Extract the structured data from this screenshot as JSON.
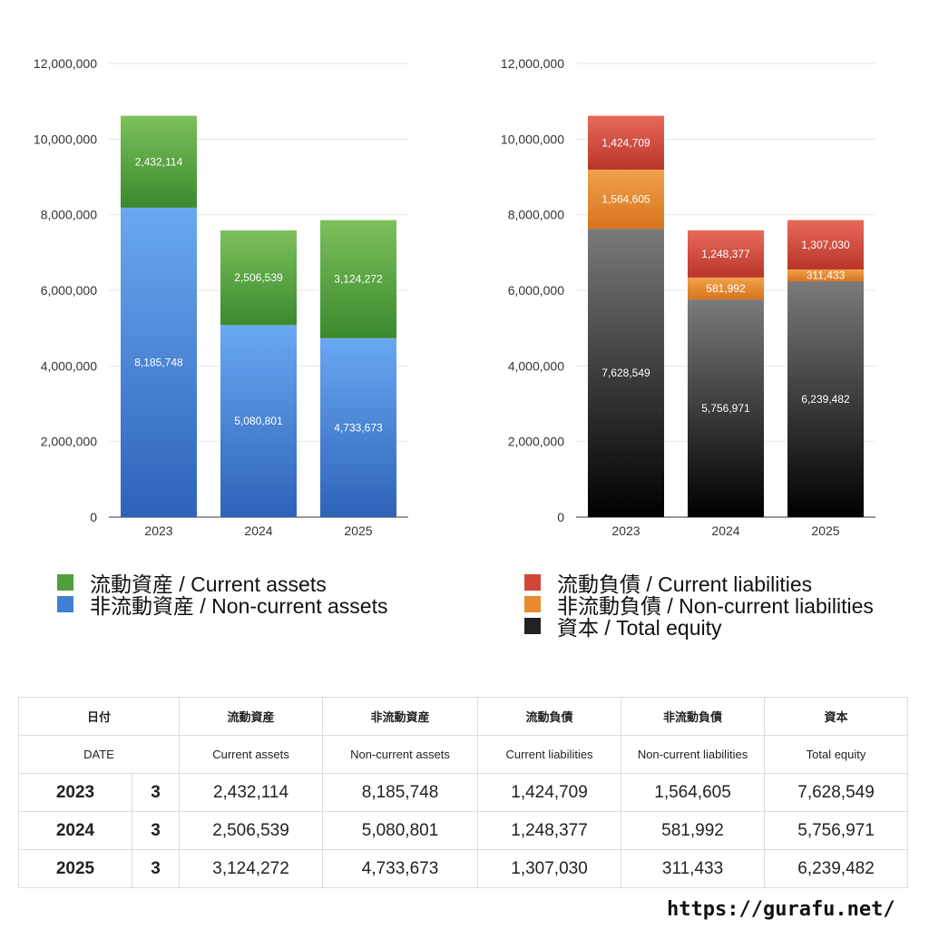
{
  "chart_data": [
    {
      "type": "bar",
      "stacked": true,
      "categories": [
        "2023",
        "2024",
        "2025"
      ],
      "ylim": [
        0,
        12000000
      ],
      "yticks": [
        "0",
        "2,000,000",
        "4,000,000",
        "6,000,000",
        "8,000,000",
        "10,000,000",
        "12,000,000"
      ],
      "grid": true,
      "series": [
        {
          "name": "非流動資産 / Non-current assets",
          "values": [
            8185748,
            5080801,
            4733673
          ],
          "color_top": "#6aa8f2",
          "color_bottom": "#2e63b8"
        },
        {
          "name": "流動資産 / Current assets",
          "values": [
            2432114,
            2506539,
            3124272
          ],
          "color_top": "#7dc05c",
          "color_bottom": "#3a8a2e"
        }
      ]
    },
    {
      "type": "bar",
      "stacked": true,
      "categories": [
        "2023",
        "2024",
        "2025"
      ],
      "ylim": [
        0,
        12000000
      ],
      "yticks": [
        "0",
        "2,000,000",
        "4,000,000",
        "6,000,000",
        "8,000,000",
        "10,000,000",
        "12,000,000"
      ],
      "grid": true,
      "series": [
        {
          "name": "資本 / Total equity",
          "values": [
            7628549,
            5756971,
            6239482
          ],
          "color_top": "#7a7a7a",
          "color_bottom": "#000000"
        },
        {
          "name": "非流動負債 / Non-current liabilities",
          "values": [
            1564605,
            581992,
            311433
          ],
          "color_top": "#f0a24a",
          "color_bottom": "#d7741f"
        },
        {
          "name": "流動負債 / Current liabilities",
          "values": [
            1424709,
            1248377,
            1307030
          ],
          "color_top": "#e86a5a",
          "color_bottom": "#b9352a"
        }
      ]
    }
  ],
  "legend_left": [
    {
      "label": "流動資産 / Current assets",
      "color": "#4fa03a"
    },
    {
      "label": "非流動資産 / Non-current assets",
      "color": "#3f80d6"
    }
  ],
  "legend_right": [
    {
      "label": "流動負債 / Current liabilities",
      "color": "#d2463a"
    },
    {
      "label": "非流動負債 / Non-current liabilities",
      "color": "#e88a30"
    },
    {
      "label": "資本 / Total equity",
      "color": "#222222"
    }
  ],
  "table": {
    "header_jp": [
      "日付",
      "",
      "流動資産",
      "非流動資産",
      "流動負債",
      "非流動負債",
      "資本"
    ],
    "header_en": [
      "DATE",
      "",
      "Current assets",
      "Non-current assets",
      "Current liabilities",
      "Non-current liabilities",
      "Total equity"
    ],
    "rows": [
      [
        "2023",
        "3",
        "2,432,114",
        "8,185,748",
        "1,424,709",
        "1,564,605",
        "7,628,549"
      ],
      [
        "2024",
        "3",
        "2,506,539",
        "5,080,801",
        "1,248,377",
        "581,992",
        "5,756,971"
      ],
      [
        "2025",
        "3",
        "3,124,272",
        "4,733,673",
        "1,307,030",
        "311,433",
        "6,239,482"
      ]
    ]
  },
  "site_url": "https://gurafu.net/"
}
